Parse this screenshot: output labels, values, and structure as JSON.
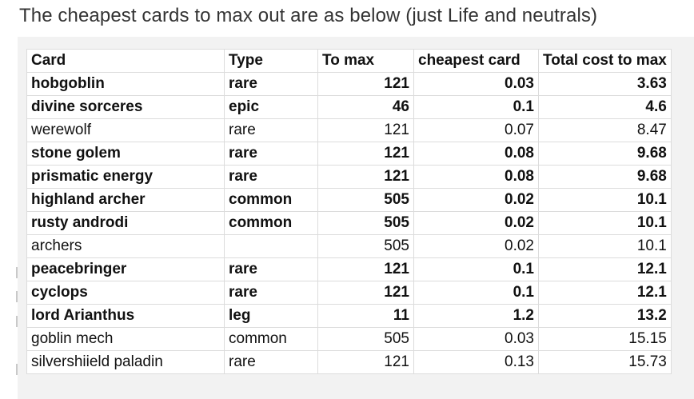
{
  "heading": "The cheapest cards to max out are as below (just Life and neutrals)",
  "table": {
    "headers": [
      "Card",
      "Type",
      "To max",
      "cheapest card",
      "Total cost to max"
    ],
    "rows": [
      {
        "card": "hobgoblin",
        "type": "rare",
        "to_max": "121",
        "cheapest": "0.03",
        "total": "3.63",
        "bold": true
      },
      {
        "card": "divine sorceres",
        "type": "epic",
        "to_max": "46",
        "cheapest": "0.1",
        "total": "4.6",
        "bold": true
      },
      {
        "card": "werewolf",
        "type": "rare",
        "to_max": "121",
        "cheapest": "0.07",
        "total": "8.47",
        "bold": false
      },
      {
        "card": "stone golem",
        "type": "rare",
        "to_max": "121",
        "cheapest": "0.08",
        "total": "9.68",
        "bold": true
      },
      {
        "card": "prismatic energy",
        "type": "rare",
        "to_max": "121",
        "cheapest": "0.08",
        "total": "9.68",
        "bold": true
      },
      {
        "card": "highland archer",
        "type": "common",
        "to_max": "505",
        "cheapest": "0.02",
        "total": "10.1",
        "bold": true
      },
      {
        "card": "rusty androdi",
        "type": "common",
        "to_max": "505",
        "cheapest": "0.02",
        "total": "10.1",
        "bold": true
      },
      {
        "card": "archers",
        "type": "",
        "to_max": "505",
        "cheapest": "0.02",
        "total": "10.1",
        "bold": false
      },
      {
        "card": "peacebringer",
        "type": "rare",
        "to_max": "121",
        "cheapest": "0.1",
        "total": "12.1",
        "bold": true
      },
      {
        "card": "cyclops",
        "type": "rare",
        "to_max": "121",
        "cheapest": "0.1",
        "total": "12.1",
        "bold": true
      },
      {
        "card": "lord Arianthus",
        "type": "leg",
        "to_max": "11",
        "cheapest": "1.2",
        "total": "13.2",
        "bold": true
      },
      {
        "card": "goblin mech",
        "type": "common",
        "to_max": "505",
        "cheapest": "0.03",
        "total": "15.15",
        "bold": false
      },
      {
        "card": "silvershiield paladin",
        "type": "rare",
        "to_max": "121",
        "cheapest": "0.13",
        "total": "15.73",
        "bold": false
      }
    ]
  },
  "colors": {
    "heading_text": "#333333",
    "cell_text": "#111111",
    "gridline": "#dcdcdc",
    "sheet_background": "#f2f2f2"
  }
}
